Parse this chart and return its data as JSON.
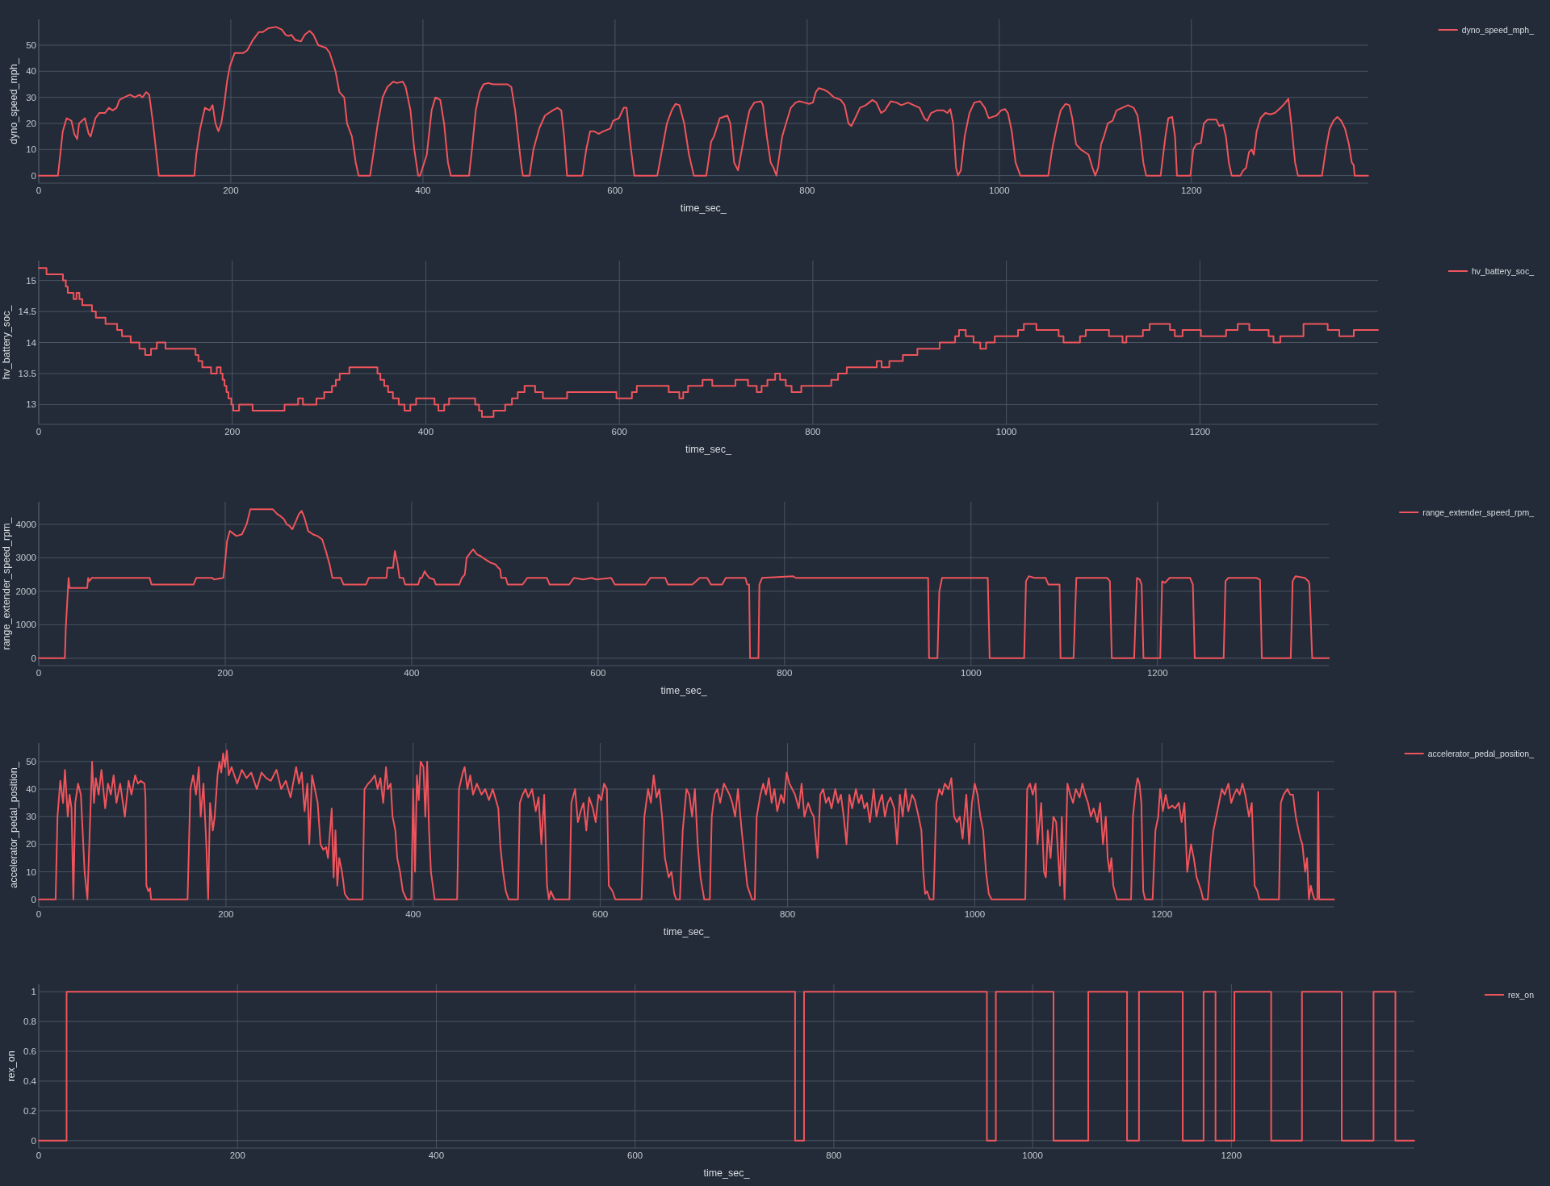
{
  "chart_data": [
    {
      "type": "line",
      "xlabel": "time_sec_",
      "ylabel": "dyno_speed_mph_",
      "xlim": [
        0,
        1384
      ],
      "ylim": [
        -2.9,
        59.9
      ],
      "xticks": [
        0,
        200,
        400,
        600,
        800,
        1000,
        1200
      ],
      "yticks": [
        0,
        10,
        20,
        30,
        40,
        50
      ],
      "grid": true,
      "legend": "top right",
      "x": [
        0,
        20,
        25,
        29,
        34,
        37,
        40,
        42,
        48,
        52,
        54,
        59,
        63,
        69,
        73,
        77,
        81,
        84,
        89,
        95,
        100,
        105,
        108,
        112,
        115,
        119,
        125,
        162,
        164,
        168,
        173,
        178,
        181,
        184,
        187,
        190,
        193,
        196,
        199,
        204,
        213,
        217,
        223,
        229,
        233,
        239,
        247,
        253,
        257,
        260,
        263,
        267,
        273,
        277,
        282,
        286,
        291,
        299,
        303,
        309,
        313,
        318,
        321,
        326,
        330,
        333,
        345,
        349,
        353,
        358,
        363,
        369,
        373,
        379,
        382,
        387,
        391,
        395,
        397,
        404,
        409,
        413,
        418,
        422,
        426,
        429,
        448,
        451,
        455,
        459,
        463,
        468,
        473,
        481,
        488,
        492,
        496,
        502,
        504,
        511,
        515,
        521,
        527,
        535,
        540,
        544,
        547,
        550,
        566,
        570,
        574,
        578,
        583,
        588,
        595,
        598,
        604,
        609,
        612,
        616,
        620,
        644,
        649,
        654,
        659,
        663,
        667,
        672,
        677,
        682,
        695,
        697,
        700,
        703,
        709,
        717,
        720,
        724,
        728,
        732,
        737,
        740,
        745,
        752,
        754,
        758,
        762,
        765,
        768,
        770,
        774,
        778,
        783,
        788,
        792,
        797,
        802,
        806,
        809,
        812,
        817,
        822,
        828,
        835,
        839,
        843,
        846,
        850,
        855,
        861,
        868,
        872,
        877,
        881,
        887,
        893,
        898,
        905,
        911,
        917,
        922,
        925,
        929,
        935,
        942,
        946,
        949,
        952,
        955,
        957,
        960,
        964,
        969,
        974,
        980,
        985,
        989,
        993,
        997,
        1002,
        1006,
        1009,
        1013,
        1017,
        1022,
        1051,
        1055,
        1060,
        1064,
        1069,
        1073,
        1076,
        1080,
        1085,
        1089,
        1093,
        1097,
        1100,
        1103,
        1106,
        1109,
        1113,
        1118,
        1122,
        1128,
        1134,
        1140,
        1144,
        1147,
        1150,
        1153,
        1168,
        1173,
        1176,
        1180,
        1183,
        1185,
        1199,
        1202,
        1205,
        1210,
        1213,
        1217,
        1226,
        1229,
        1233,
        1236,
        1239,
        1242,
        1251,
        1254,
        1257,
        1260,
        1263,
        1265,
        1268,
        1272,
        1277,
        1282,
        1287,
        1293,
        1298,
        1301,
        1304,
        1308,
        1311,
        1336,
        1340,
        1344,
        1348,
        1352,
        1356,
        1360,
        1364,
        1367,
        1369,
        1370,
        1384
      ],
      "series": [
        {
          "name": "dyno_speed_mph_",
          "color": "#f0545c",
          "values": [
            0,
            0,
            17,
            22,
            21,
            16,
            14,
            20,
            22,
            16,
            15,
            22,
            24,
            24,
            26,
            25,
            26,
            29,
            30,
            31,
            30,
            31,
            30,
            32,
            31,
            20,
            0,
            0,
            8,
            18,
            26,
            25,
            27,
            20,
            17,
            20,
            27,
            36,
            42,
            47,
            47,
            48,
            52,
            55,
            55,
            56.5,
            57,
            56,
            54,
            53.5,
            54,
            52,
            51.5,
            54,
            55.5,
            54,
            50,
            49,
            47,
            40,
            32,
            30,
            20,
            15,
            5,
            0,
            0,
            10,
            20,
            30,
            34,
            36,
            35.5,
            36,
            34,
            25,
            10,
            0,
            0,
            8,
            25,
            30,
            29,
            20,
            5,
            0,
            0,
            10,
            25,
            32,
            35,
            35.5,
            35,
            35,
            35,
            34,
            25,
            5,
            0,
            0,
            10,
            18,
            23,
            25,
            26,
            25,
            15,
            0,
            0,
            10,
            17,
            17,
            16,
            17,
            18,
            21,
            22,
            26,
            26,
            12,
            0,
            0,
            10,
            20,
            25,
            27.5,
            27,
            20,
            8,
            0,
            0,
            5,
            13,
            15,
            22,
            23,
            20,
            5,
            2,
            10,
            20,
            25,
            28,
            28.5,
            27,
            15,
            5,
            3,
            0,
            5,
            15,
            20,
            26,
            28,
            28.5,
            28,
            27.5,
            28,
            32,
            33.5,
            33,
            32,
            30,
            29,
            27,
            20,
            19,
            22,
            26,
            27,
            29,
            28,
            24,
            25,
            28.5,
            28,
            27,
            28,
            27,
            26,
            22,
            21,
            24,
            25,
            25,
            24,
            25.5,
            20,
            3,
            0,
            2,
            15,
            24,
            28,
            28.5,
            26,
            22,
            22.5,
            23,
            25,
            25.5,
            24,
            17,
            5,
            0,
            0,
            10,
            19,
            25,
            27.5,
            27,
            22,
            12,
            10,
            9,
            8,
            3,
            0,
            3,
            12,
            15,
            20,
            21,
            25,
            26,
            27,
            26,
            23,
            15,
            5,
            0,
            0,
            15,
            22,
            22.5,
            15,
            0,
            0,
            10,
            12,
            12.5,
            20,
            21.5,
            21.5,
            19,
            19.5,
            15,
            5,
            0,
            0,
            2,
            3,
            9,
            10,
            8,
            17,
            22,
            24,
            23.5,
            24,
            26,
            28,
            29.5,
            20,
            5,
            0,
            0,
            10,
            18,
            21,
            22.5,
            21,
            18,
            12,
            5,
            4,
            0,
            0
          ]
        }
      ]
    },
    {
      "type": "step",
      "xlabel": "time_sec_",
      "ylabel": "hv_battery_soc_",
      "xlim": [
        0,
        1384
      ],
      "ylim": [
        12.68,
        15.32
      ],
      "xticks": [
        0,
        200,
        400,
        600,
        800,
        1000,
        1200
      ],
      "yticks": [
        13,
        13.5,
        14,
        14.5,
        15
      ],
      "grid": true,
      "legend": "top right",
      "x": [
        0,
        8,
        25,
        28,
        30,
        36,
        39,
        42,
        45,
        55,
        59,
        69,
        81,
        86,
        95,
        104,
        110,
        116,
        122,
        131,
        162,
        165,
        169,
        178,
        184,
        188,
        190,
        192,
        194,
        196,
        199,
        201,
        207,
        221,
        254,
        268,
        273,
        287,
        295,
        303,
        307,
        311,
        321,
        350,
        353,
        357,
        361,
        366,
        372,
        378,
        384,
        390,
        409,
        413,
        419,
        424,
        451,
        455,
        458,
        470,
        482,
        489,
        495,
        502,
        513,
        521,
        546,
        597,
        613,
        618,
        651,
        662,
        666,
        671,
        686,
        696,
        720,
        733,
        742,
        747,
        753,
        761,
        766,
        772,
        778,
        788,
        819,
        826,
        835,
        866,
        871,
        879,
        893,
        908,
        931,
        947,
        951,
        958,
        966,
        973,
        979,
        988,
        1012,
        1018,
        1031,
        1054,
        1059,
        1076,
        1082,
        1106,
        1120,
        1124,
        1141,
        1148,
        1169,
        1174,
        1182,
        1201,
        1227,
        1239,
        1251,
        1271,
        1276,
        1283,
        1307,
        1332,
        1344,
        1359,
        1384
      ],
      "series": [
        {
          "name": "hv_battery_soc_",
          "color": "#f0545c",
          "values": [
            15.2,
            15.1,
            15.0,
            14.9,
            14.8,
            14.7,
            14.8,
            14.7,
            14.6,
            14.5,
            14.4,
            14.3,
            14.2,
            14.1,
            14.0,
            13.9,
            13.8,
            13.9,
            14.0,
            13.9,
            13.8,
            13.7,
            13.6,
            13.5,
            13.6,
            13.5,
            13.4,
            13.3,
            13.2,
            13.1,
            13.0,
            12.9,
            13.0,
            12.9,
            13.0,
            13.1,
            13.0,
            13.1,
            13.2,
            13.3,
            13.4,
            13.5,
            13.6,
            13.5,
            13.4,
            13.3,
            13.2,
            13.1,
            13.0,
            12.9,
            13.0,
            13.1,
            13.0,
            12.9,
            13.0,
            13.1,
            13.0,
            12.9,
            12.8,
            12.9,
            13.0,
            13.1,
            13.2,
            13.3,
            13.2,
            13.1,
            13.2,
            13.1,
            13.2,
            13.3,
            13.2,
            13.1,
            13.2,
            13.3,
            13.4,
            13.3,
            13.4,
            13.3,
            13.2,
            13.3,
            13.4,
            13.5,
            13.4,
            13.3,
            13.2,
            13.3,
            13.4,
            13.5,
            13.6,
            13.7,
            13.6,
            13.7,
            13.8,
            13.9,
            14.0,
            14.1,
            14.2,
            14.1,
            14.0,
            13.9,
            14.0,
            14.1,
            14.2,
            14.3,
            14.2,
            14.1,
            14.0,
            14.1,
            14.2,
            14.1,
            14.0,
            14.1,
            14.2,
            14.3,
            14.2,
            14.1,
            14.2,
            14.1,
            14.2,
            14.3,
            14.2,
            14.1,
            14.0,
            14.1,
            14.3,
            14.2,
            14.1,
            14.2,
            14.2
          ]
        }
      ]
    },
    {
      "type": "line",
      "xlabel": "time_sec_",
      "ylabel": "range_extender_speed_rpm_",
      "xlim": [
        0,
        1384
      ],
      "ylim": [
        -220,
        4670
      ],
      "xticks": [
        0,
        200,
        400,
        600,
        800,
        1000,
        1200
      ],
      "yticks": [
        0,
        1000,
        2000,
        3000,
        4000
      ],
      "grid": true,
      "legend": "top right",
      "x": [
        0,
        28,
        29,
        32,
        33,
        52,
        53,
        54,
        57,
        119,
        121,
        166,
        169,
        186,
        188,
        198,
        200,
        202,
        205,
        212,
        218,
        223,
        227,
        251,
        256,
        259,
        263,
        266,
        269,
        272,
        276,
        279,
        282,
        285,
        289,
        294,
        299,
        304,
        308,
        312,
        315,
        324,
        327,
        351,
        354,
        373,
        374,
        380,
        382,
        385,
        387,
        391,
        393,
        407,
        409,
        411,
        414,
        416,
        419,
        424,
        426,
        451,
        454,
        457,
        459,
        463,
        466,
        470,
        474,
        479,
        485,
        490,
        493,
        495,
        496,
        501,
        503,
        519,
        524,
        545,
        548,
        569,
        574,
        584,
        593,
        598,
        614,
        618,
        651,
        656,
        672,
        675,
        701,
        705,
        709,
        717,
        721,
        733,
        737,
        758,
        760,
        762,
        763,
        772,
        773,
        776,
        809,
        812,
        954,
        955,
        964,
        966,
        969,
        1018,
        1020,
        1057,
        1059,
        1062,
        1068,
        1080,
        1083,
        1095,
        1096,
        1110,
        1113,
        1146,
        1149,
        1151,
        1175,
        1178,
        1181,
        1183,
        1185,
        1203,
        1205,
        1208,
        1213,
        1235,
        1238,
        1240,
        1271,
        1273,
        1276,
        1306,
        1310,
        1312,
        1343,
        1345,
        1348,
        1358,
        1362,
        1363,
        1366,
        1384
      ],
      "series": [
        {
          "name": "range_extender_speed_rpm_",
          "color": "#f0545c",
          "values": [
            0,
            0,
            900,
            2400,
            2100,
            2100,
            2400,
            2300,
            2400,
            2400,
            2200,
            2200,
            2400,
            2400,
            2350,
            2400,
            2900,
            3500,
            3800,
            3650,
            3700,
            4000,
            4450,
            4450,
            4300,
            4250,
            4150,
            4000,
            3950,
            3850,
            4100,
            4300,
            4400,
            4200,
            3800,
            3700,
            3650,
            3550,
            3200,
            2800,
            2400,
            2400,
            2200,
            2200,
            2400,
            2400,
            2700,
            2700,
            3200,
            2800,
            2400,
            2400,
            2200,
            2200,
            2400,
            2400,
            2600,
            2500,
            2400,
            2350,
            2200,
            2200,
            2400,
            2500,
            3000,
            3150,
            3250,
            3100,
            3050,
            2950,
            2850,
            2800,
            2700,
            2650,
            2400,
            2400,
            2200,
            2200,
            2400,
            2400,
            2200,
            2200,
            2400,
            2350,
            2400,
            2350,
            2400,
            2200,
            2200,
            2400,
            2400,
            2200,
            2200,
            2300,
            2400,
            2400,
            2200,
            2200,
            2400,
            2400,
            2200,
            2200,
            0,
            0,
            2200,
            2400,
            2450,
            2400,
            2400,
            0,
            0,
            2000,
            2400,
            2400,
            0,
            0,
            2300,
            2450,
            2400,
            2400,
            2200,
            2200,
            0,
            0,
            2400,
            2400,
            2300,
            0,
            0,
            2400,
            2350,
            2200,
            0,
            0,
            2300,
            2250,
            2400,
            2400,
            2200,
            0,
            0,
            2300,
            2400,
            2400,
            2350,
            0,
            0,
            2300,
            2450,
            2400,
            2300,
            2200,
            0,
            0
          ]
        }
      ]
    },
    {
      "type": "line",
      "xlabel": "time_sec_",
      "ylabel": "accelerator_pedal_position_",
      "xlim": [
        0,
        1384
      ],
      "ylim": [
        -2.7,
        56.7
      ],
      "xticks": [
        0,
        200,
        400,
        600,
        800,
        1000,
        1200
      ],
      "yticks": [
        0,
        10,
        20,
        30,
        40,
        50
      ],
      "grid": true,
      "legend": "top right",
      "x": [
        0,
        18,
        20,
        23,
        26,
        28,
        31,
        33,
        35,
        37,
        39,
        42,
        45,
        49,
        52,
        54,
        57,
        59,
        61,
        64,
        67,
        71,
        74,
        77,
        80,
        83,
        87,
        92,
        96,
        99,
        103,
        106,
        109,
        113,
        114,
        115,
        117,
        119,
        120,
        159,
        162,
        165,
        168,
        171,
        173,
        176,
        179,
        181,
        183,
        186,
        188,
        191,
        193,
        195,
        197,
        199,
        201,
        203,
        206,
        212,
        217,
        222,
        227,
        233,
        238,
        243,
        248,
        254,
        259,
        264,
        269,
        275,
        278,
        281,
        284,
        287,
        289,
        292,
        295,
        298,
        301,
        304,
        307,
        309,
        313,
        315,
        317,
        319,
        321,
        324,
        327,
        331,
        346,
        348,
        352,
        355,
        359,
        362,
        365,
        368,
        371,
        373,
        376,
        378,
        381,
        383,
        386,
        389,
        393,
        398,
        400,
        402,
        404,
        406,
        408,
        411,
        413,
        415,
        417,
        419,
        421,
        423,
        447,
        449,
        453,
        455,
        458,
        461,
        464,
        468,
        473,
        477,
        481,
        485,
        491,
        493,
        496,
        499,
        502,
        512,
        514,
        517,
        520,
        523,
        527,
        531,
        534,
        537,
        540,
        543,
        545,
        547,
        551,
        567,
        569,
        573,
        576,
        579,
        582,
        585,
        588,
        592,
        595,
        598,
        601,
        604,
        607,
        609,
        613,
        616,
        644,
        647,
        651,
        654,
        657,
        660,
        663,
        666,
        669,
        673,
        676,
        679,
        681,
        685,
        688,
        692,
        695,
        698,
        701,
        704,
        707,
        711,
        717,
        719,
        722,
        725,
        728,
        732,
        735,
        738,
        741,
        744,
        747,
        751,
        754,
        757,
        760,
        762,
        765,
        767,
        771,
        774,
        777,
        780,
        783,
        786,
        789,
        793,
        796,
        799,
        802,
        805,
        808,
        812,
        815,
        818,
        822,
        825,
        828,
        832,
        835,
        838,
        841,
        844,
        847,
        851,
        854,
        857,
        860,
        863,
        866,
        869,
        873,
        876,
        879,
        882,
        885,
        888,
        892,
        895,
        898,
        901,
        904,
        907,
        910,
        914,
        917,
        920,
        923,
        926,
        929,
        933,
        936,
        940,
        943,
        945,
        947,
        949,
        952,
        956,
        959,
        962,
        965,
        968,
        972,
        975,
        978,
        981,
        984,
        987,
        991,
        994,
        997,
        1000,
        1003,
        1006,
        1009,
        1012,
        1015,
        1018,
        1054,
        1056,
        1059,
        1062,
        1065,
        1067,
        1071,
        1074,
        1076,
        1078,
        1081,
        1084,
        1087,
        1091,
        1093,
        1096,
        1099,
        1102,
        1105,
        1108,
        1112,
        1115,
        1118,
        1121,
        1124,
        1127,
        1131,
        1134,
        1137,
        1140,
        1142,
        1144,
        1146,
        1148,
        1152,
        1167,
        1169,
        1172,
        1174,
        1176,
        1178,
        1180,
        1182,
        1190,
        1193,
        1196,
        1198,
        1201,
        1204,
        1207,
        1211,
        1214,
        1218,
        1221,
        1224,
        1227,
        1231,
        1234,
        1237,
        1240,
        1242,
        1244,
        1249,
        1252,
        1255,
        1258,
        1261,
        1264,
        1267,
        1271,
        1274,
        1277,
        1280,
        1283,
        1286,
        1289,
        1293,
        1296,
        1299,
        1302,
        1304,
        1325,
        1327,
        1330,
        1334,
        1337,
        1340,
        1343,
        1346,
        1348,
        1350,
        1353,
        1355,
        1357,
        1359,
        1361,
        1363,
        1366,
        1367,
        1368,
        1384
      ],
      "series": [
        {
          "name": "accelerator_pedal_position_",
          "color": "#f0545c",
          "values": [
            0,
            0,
            30,
            43,
            35,
            47,
            30,
            38,
            33,
            0,
            35,
            42,
            38,
            10,
            0,
            20,
            50,
            35,
            44,
            38,
            47,
            33,
            42,
            38,
            45,
            35,
            42,
            30,
            43,
            38,
            45,
            42,
            43,
            42,
            37,
            5,
            3,
            4,
            0,
            0,
            40,
            45,
            38,
            48,
            30,
            42,
            20,
            0,
            35,
            25,
            30,
            45,
            50,
            46,
            53,
            48,
            54,
            45,
            48,
            42,
            47,
            44,
            46,
            40,
            46,
            44,
            43,
            47,
            40,
            43,
            37,
            48,
            42,
            46,
            32,
            42,
            20,
            45,
            40,
            35,
            20,
            18,
            19,
            15,
            33,
            8,
            25,
            5,
            15,
            10,
            2,
            0,
            0,
            40,
            42,
            43,
            45,
            40,
            44,
            35,
            48,
            40,
            42,
            30,
            25,
            15,
            10,
            3,
            0,
            0,
            40,
            10,
            45,
            36,
            50,
            48,
            30,
            50,
            25,
            10,
            5,
            0,
            0,
            40,
            46,
            48,
            40,
            45,
            38,
            42,
            38,
            40,
            36,
            40,
            33,
            20,
            10,
            3,
            0,
            0,
            35,
            38,
            40,
            37,
            40,
            32,
            37,
            20,
            38,
            5,
            0,
            3,
            0,
            0,
            35,
            40,
            28,
            32,
            35,
            25,
            37,
            33,
            28,
            38,
            36,
            42,
            40,
            5,
            3,
            0,
            0,
            30,
            40,
            35,
            45,
            37,
            40,
            30,
            15,
            8,
            10,
            2,
            0,
            0,
            25,
            40,
            38,
            30,
            40,
            20,
            8,
            0,
            0,
            30,
            38,
            40,
            35,
            42,
            40,
            38,
            35,
            30,
            40,
            25,
            15,
            5,
            2,
            0,
            0,
            30,
            38,
            42,
            38,
            44,
            35,
            40,
            32,
            38,
            35,
            46,
            42,
            40,
            38,
            33,
            42,
            30,
            35,
            32,
            30,
            15,
            38,
            40,
            35,
            37,
            33,
            40,
            35,
            38,
            30,
            20,
            38,
            33,
            40,
            35,
            38,
            33,
            35,
            28,
            40,
            30,
            35,
            38,
            30,
            35,
            37,
            33,
            20,
            38,
            30,
            40,
            32,
            38,
            36,
            30,
            25,
            10,
            2,
            3,
            0,
            0,
            35,
            40,
            38,
            42,
            40,
            44,
            30,
            28,
            30,
            22,
            38,
            20,
            35,
            42,
            38,
            30,
            25,
            10,
            2,
            0,
            0,
            40,
            42,
            38,
            42,
            20,
            35,
            10,
            8,
            25,
            15,
            30,
            28,
            5,
            30,
            0,
            42,
            38,
            35,
            40,
            37,
            42,
            38,
            35,
            30,
            33,
            28,
            35,
            20,
            30,
            15,
            10,
            15,
            5,
            0,
            0,
            30,
            40,
            44,
            42,
            35,
            3,
            0,
            0,
            25,
            30,
            40,
            32,
            38,
            33,
            34,
            33,
            35,
            28,
            35,
            10,
            20,
            15,
            8,
            5,
            3,
            0,
            0,
            15,
            25,
            30,
            35,
            40,
            38,
            42,
            35,
            38,
            40,
            38,
            42,
            38,
            30,
            35,
            5,
            3,
            0,
            0,
            35,
            38,
            40,
            38,
            38,
            30,
            25,
            22,
            20,
            10,
            15,
            0,
            5,
            2,
            0,
            0,
            39,
            0,
            0
          ]
        }
      ]
    },
    {
      "type": "step",
      "xlabel": "time_sec_",
      "ylabel": "rex_on",
      "xlim": [
        0,
        1384
      ],
      "ylim": [
        -0.05,
        1.05
      ],
      "xticks": [
        0,
        200,
        400,
        600,
        800,
        1000,
        1200
      ],
      "yticks": [
        0,
        0.2,
        0.4,
        0.6,
        0.8,
        1
      ],
      "grid": true,
      "legend": "top right",
      "x": [
        0,
        28,
        761,
        770,
        954,
        963,
        1021,
        1056,
        1095,
        1107,
        1151,
        1172,
        1184,
        1203,
        1240,
        1271,
        1311,
        1343,
        1365,
        1384
      ],
      "series": [
        {
          "name": "rex_on",
          "color": "#f0545c",
          "values": [
            0,
            1,
            0,
            1,
            0,
            1,
            0,
            1,
            0,
            1,
            0,
            1,
            0,
            1,
            0,
            1,
            0,
            1,
            0,
            0
          ]
        }
      ]
    }
  ]
}
